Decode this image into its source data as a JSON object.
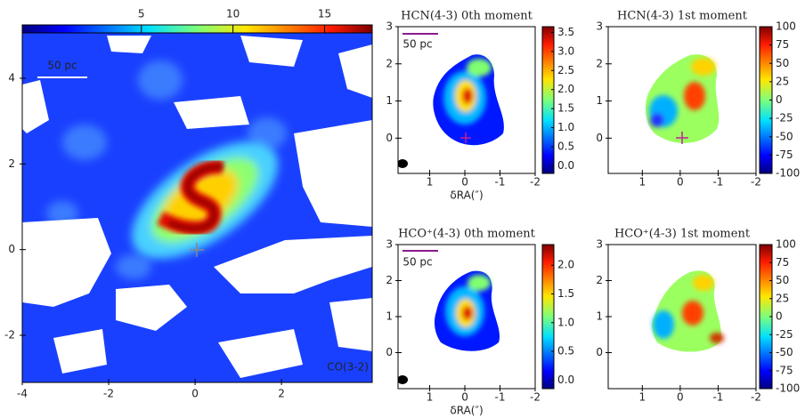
{
  "chart_data": [
    {
      "type": "heatmap",
      "annotations": [
        "50 pc",
        "CO(3-2)"
      ],
      "xlim": [
        -4,
        4.1
      ],
      "ylim": [
        -3.1,
        5.1
      ],
      "xticks": [
        -4,
        -2,
        0,
        2
      ],
      "yticks": [
        -2,
        0,
        2,
        4
      ],
      "colorbar": {
        "orientation": "horizontal",
        "clim": [
          -1.5,
          17.6
        ],
        "ticks": [
          5,
          10,
          15
        ]
      }
    },
    {
      "type": "heatmap",
      "title": "HCN(4-3) 0th moment",
      "xlabel": "δRA(″)",
      "annotations": [
        "50 pc"
      ],
      "xlim": [
        1.9,
        -2
      ],
      "ylim": [
        -0.95,
        3
      ],
      "xticks": [
        1,
        0,
        -1,
        -2
      ],
      "yticks": [
        0,
        1,
        2,
        3
      ],
      "colorbar": {
        "orientation": "vertical",
        "clim": [
          -0.2,
          3.65
        ],
        "ticks": [
          {
            "value": 0,
            "label": "0.0"
          },
          {
            "value": 0.5,
            "label": "0.5"
          },
          {
            "value": 1,
            "label": "1.0"
          },
          {
            "value": 1.5,
            "label": "1.5"
          },
          {
            "value": 2,
            "label": "2.0"
          },
          {
            "value": 2.5,
            "label": "2.5"
          },
          {
            "value": 3,
            "label": "3.0"
          },
          {
            "value": 3.5,
            "label": "3.5"
          }
        ]
      }
    },
    {
      "type": "heatmap",
      "title": "HCN(4-3) 1st moment",
      "xlim": [
        1.9,
        -2
      ],
      "ylim": [
        -0.95,
        3
      ],
      "xticks": [
        1,
        0,
        -1,
        -2
      ],
      "yticks": [
        0,
        1,
        2,
        3
      ],
      "colorbar": {
        "orientation": "vertical",
        "clim": [
          -100,
          100
        ],
        "ticks": [
          -100,
          -75,
          -50,
          -25,
          0,
          25,
          50,
          75,
          100
        ]
      }
    },
    {
      "type": "heatmap",
      "title": "HCO⁺(4-3) 0th moment",
      "xlabel": "δRA(″)",
      "annotations": [
        "50 pc"
      ],
      "xlim": [
        1.9,
        -2
      ],
      "ylim": [
        -1,
        3
      ],
      "xticks": [
        1,
        0,
        -1,
        -2
      ],
      "yticks": [
        0,
        1,
        2,
        3
      ],
      "colorbar": {
        "orientation": "vertical",
        "clim": [
          -0.15,
          2.36
        ],
        "ticks": [
          {
            "value": 0,
            "label": "0.0"
          },
          {
            "value": 0.5,
            "label": "0.5"
          },
          {
            "value": 1,
            "label": "1.0"
          },
          {
            "value": 1.5,
            "label": "1.5"
          },
          {
            "value": 2,
            "label": "2.0"
          }
        ]
      }
    },
    {
      "type": "heatmap",
      "title": "HCO⁺(4-3) 1st moment",
      "xlim": [
        1.9,
        -2
      ],
      "ylim": [
        -1,
        3
      ],
      "xticks": [
        1,
        0,
        -1,
        -2
      ],
      "yticks": [
        0,
        1,
        2,
        3
      ],
      "colorbar": {
        "orientation": "vertical",
        "clim": [
          -100,
          100
        ],
        "ticks": [
          -100,
          -75,
          -50,
          -25,
          0,
          25,
          50,
          75,
          100
        ]
      }
    }
  ]
}
